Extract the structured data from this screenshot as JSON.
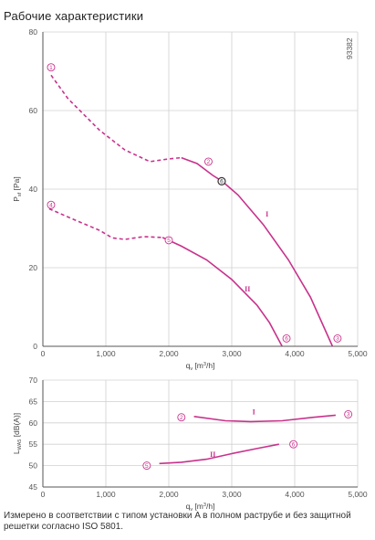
{
  "title": "Рабочие характеристики",
  "id_code": "93382",
  "note": "Измерено в соответствии с типом установки A в полном раструбе и без защитной решетки согласно ISO 5801.",
  "colors": {
    "curve": "#c8328c",
    "grid": "#d0d0d0",
    "axis": "#555555"
  },
  "chart_data": [
    {
      "type": "line",
      "ylabel": {
        "main": "P",
        "sub": "sf",
        "unit": "[Pa]"
      },
      "xlabel": {
        "main": "q",
        "sub": "v",
        "unit_pre": "[m",
        "unit_sup": "3",
        "unit_post": "/h]"
      },
      "xlim": [
        0,
        5000
      ],
      "ylim": [
        0,
        80
      ],
      "x_ticks": [
        0,
        1000,
        2000,
        3000,
        4000,
        5000
      ],
      "x_tick_labels": [
        "0",
        "1,000",
        "2,000",
        "3,000",
        "4,000",
        "5,000"
      ],
      "y_ticks": [
        0,
        20,
        40,
        60,
        80
      ],
      "y_tick_labels": [
        "0",
        "20",
        "40",
        "60",
        "80"
      ],
      "grid": true,
      "series": [
        {
          "name": "I",
          "dashed": [
            [
              130,
              69
            ],
            [
              400,
              63
            ],
            [
              900,
              55
            ],
            [
              1300,
              50
            ],
            [
              1700,
              47
            ],
            [
              2000,
              47.7
            ],
            [
              2200,
              48
            ]
          ],
          "solid": [
            [
              2200,
              48
            ],
            [
              2450,
              46.5
            ],
            [
              2700,
              43.5
            ],
            [
              2850,
              42
            ],
            [
              3100,
              38.5
            ],
            [
              3500,
              31
            ],
            [
              3900,
              22
            ],
            [
              4250,
              12.5
            ],
            [
              4600,
              0
            ]
          ],
          "points": [
            {
              "label": "1",
              "x": 130,
              "y": 71
            },
            {
              "label": "2",
              "x": 2630,
              "y": 47
            },
            {
              "label": "3",
              "x": 4680,
              "y": 2
            },
            {
              "label": "6",
              "x": 2840,
              "y": 42,
              "filled": true
            }
          ],
          "roman_pos": [
            3560,
            33
          ]
        },
        {
          "name": "II",
          "dashed": [
            [
              100,
              35
            ],
            [
              500,
              32.2
            ],
            [
              900,
              29.5
            ],
            [
              1100,
              27.6
            ],
            [
              1300,
              27.2
            ],
            [
              1600,
              27.9
            ],
            [
              1900,
              27.7
            ]
          ],
          "solid": [
            [
              1900,
              27.7
            ],
            [
              2200,
              25.5
            ],
            [
              2600,
              22
            ],
            [
              3000,
              17
            ],
            [
              3400,
              10.5
            ],
            [
              3600,
              6
            ],
            [
              3800,
              0
            ]
          ],
          "points": [
            {
              "label": "4",
              "x": 130,
              "y": 36
            },
            {
              "label": "5",
              "x": 2000,
              "y": 27
            },
            {
              "label": "6",
              "x": 3870,
              "y": 2
            }
          ],
          "roman_pos": [
            3250,
            14
          ]
        }
      ]
    },
    {
      "type": "line",
      "ylabel": {
        "main": "L",
        "sub": "WA5",
        "unit": "[dB(A)]"
      },
      "xlabel": {
        "main": "q",
        "sub": "v",
        "unit_pre": "[m",
        "unit_sup": "3",
        "unit_post": "/h]"
      },
      "xlim": [
        0,
        5000
      ],
      "ylim": [
        45,
        70
      ],
      "x_ticks": [
        0,
        1000,
        2000,
        3000,
        4000,
        5000
      ],
      "x_tick_labels": [
        "0",
        "1,000",
        "2,000",
        "3,000",
        "4,000",
        "5,000"
      ],
      "y_ticks": [
        45,
        50,
        55,
        60,
        65,
        70
      ],
      "y_tick_labels": [
        "45",
        "50",
        "55",
        "60",
        "65",
        "70"
      ],
      "grid": true,
      "series": [
        {
          "name": "I",
          "solid": [
            [
              2400,
              61.5
            ],
            [
              2900,
              60.5
            ],
            [
              3300,
              60.3
            ],
            [
              3800,
              60.5
            ],
            [
              4300,
              61.3
            ],
            [
              4650,
              61.8
            ]
          ],
          "points": [
            {
              "label": "2",
              "x": 2200,
              "y": 61.3
            },
            {
              "label": "3",
              "x": 4850,
              "y": 62
            }
          ],
          "roman_pos": [
            3350,
            62
          ]
        },
        {
          "name": "II",
          "solid": [
            [
              1850,
              50.5
            ],
            [
              2200,
              50.8
            ],
            [
              2600,
              51.5
            ],
            [
              3000,
              52.8
            ],
            [
              3400,
              54
            ],
            [
              3750,
              55
            ]
          ],
          "points": [
            {
              "label": "5",
              "x": 1650,
              "y": 50
            },
            {
              "label": "6",
              "x": 3980,
              "y": 55
            }
          ],
          "roman_pos": [
            2700,
            52
          ]
        }
      ]
    }
  ]
}
